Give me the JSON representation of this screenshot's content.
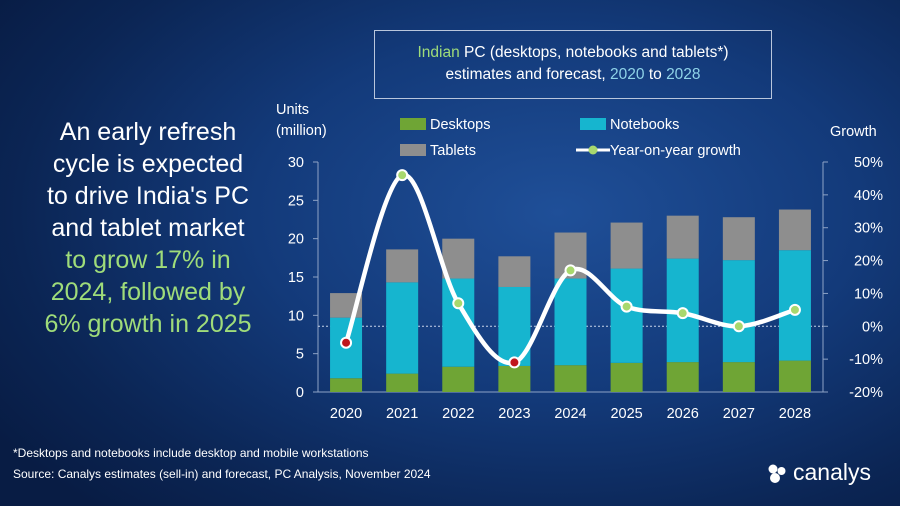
{
  "headline": {
    "line1": "An early refresh",
    "line2": "cycle is expected",
    "line3": "to drive India's PC",
    "line4": "and tablet market",
    "line5": "to grow 17% in",
    "line6": "2024, followed by",
    "line7": "6% growth in 2025"
  },
  "title": {
    "w1": "Indian",
    "w2": "PC (desktops, notebooks and tablets*)",
    "w3": "estimates and forecast,",
    "w4": "2020",
    "w5": "to",
    "w6": "2028"
  },
  "colors": {
    "desktops": "#6fa535",
    "notebooks": "#16b5cf",
    "tablets": "#8e8e8e",
    "growth_line": "#ffffff",
    "growth_marker": "#a8d86e",
    "negative_marker": "#c0161c",
    "highlight_green": "#9fdc7a",
    "highlight_blue": "#8fd3e8"
  },
  "chart_data": {
    "type": "bar",
    "stacked": true,
    "categories": [
      "2020",
      "2021",
      "2022",
      "2023",
      "2024",
      "2025",
      "2026",
      "2027",
      "2028"
    ],
    "series": [
      {
        "name": "Desktops",
        "values": [
          1.8,
          2.4,
          3.3,
          3.4,
          3.5,
          3.8,
          3.9,
          3.9,
          4.1
        ]
      },
      {
        "name": "Notebooks",
        "values": [
          7.9,
          11.9,
          11.5,
          10.3,
          11.3,
          12.3,
          13.5,
          13.3,
          14.4
        ]
      },
      {
        "name": "Tablets",
        "values": [
          3.2,
          4.3,
          5.2,
          4.0,
          6.0,
          6.0,
          5.6,
          5.6,
          5.3
        ]
      }
    ],
    "line_series": {
      "name": "Year-on-year growth",
      "values": [
        -5,
        46,
        7,
        -11,
        17,
        6,
        4,
        0,
        5
      ]
    },
    "ylabel_line1": "Units",
    "ylabel_line2": "(million)",
    "y2label": "Growth",
    "ylim": [
      0,
      30
    ],
    "y2lim": [
      -20,
      50
    ],
    "yticks": [
      0,
      5,
      10,
      15,
      20,
      25,
      30
    ],
    "y2ticks": [
      "-20%",
      "-10%",
      "0%",
      "10%",
      "20%",
      "30%",
      "40%",
      "50%"
    ],
    "legend": [
      "Desktops",
      "Notebooks",
      "Tablets",
      "Year-on-year growth"
    ]
  },
  "footnote1": "*Desktops and notebooks include desktop and mobile workstations",
  "footnote2": "Source: Canalys estimates (sell-in) and forecast, PC Analysis, November 2024",
  "logo_text": "canalys"
}
